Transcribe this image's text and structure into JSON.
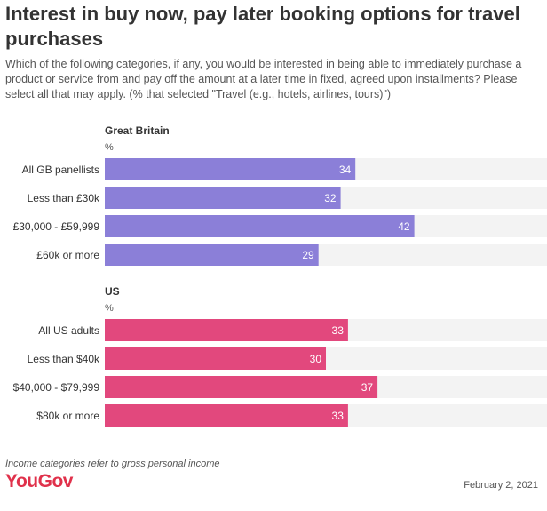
{
  "title": "Interest in buy now, pay later booking options for travel purchases",
  "subtitle": "Which of the following categories, if any, you would be interested in being able to immediately purchase a product or service from and pay off the amount at a later time in fixed, agreed upon installments? Please select all that may apply. (% that selected \"Travel (e.g., hotels, airlines, tours)\")",
  "footnote": "Income categories refer to gross personal income",
  "brand": "YouGov",
  "date": "February 2, 2021",
  "colors": {
    "gb": "#8b7fd8",
    "us": "#e2487d",
    "track": "#f3f3f3"
  },
  "chart_data": [
    {
      "type": "bar",
      "title": "Great Britain",
      "unit": "%",
      "categories": [
        "All GB panellists",
        "Less than £30k",
        "£30,000 - £59,999",
        "£60k or more"
      ],
      "values": [
        34,
        32,
        42,
        29
      ],
      "xlim": [
        0,
        60
      ]
    },
    {
      "type": "bar",
      "title": "US",
      "unit": "%",
      "categories": [
        "All US adults",
        "Less than $40k",
        "$40,000 - $79,999",
        "$80k or more"
      ],
      "values": [
        33,
        30,
        37,
        33
      ],
      "xlim": [
        0,
        60
      ]
    }
  ]
}
